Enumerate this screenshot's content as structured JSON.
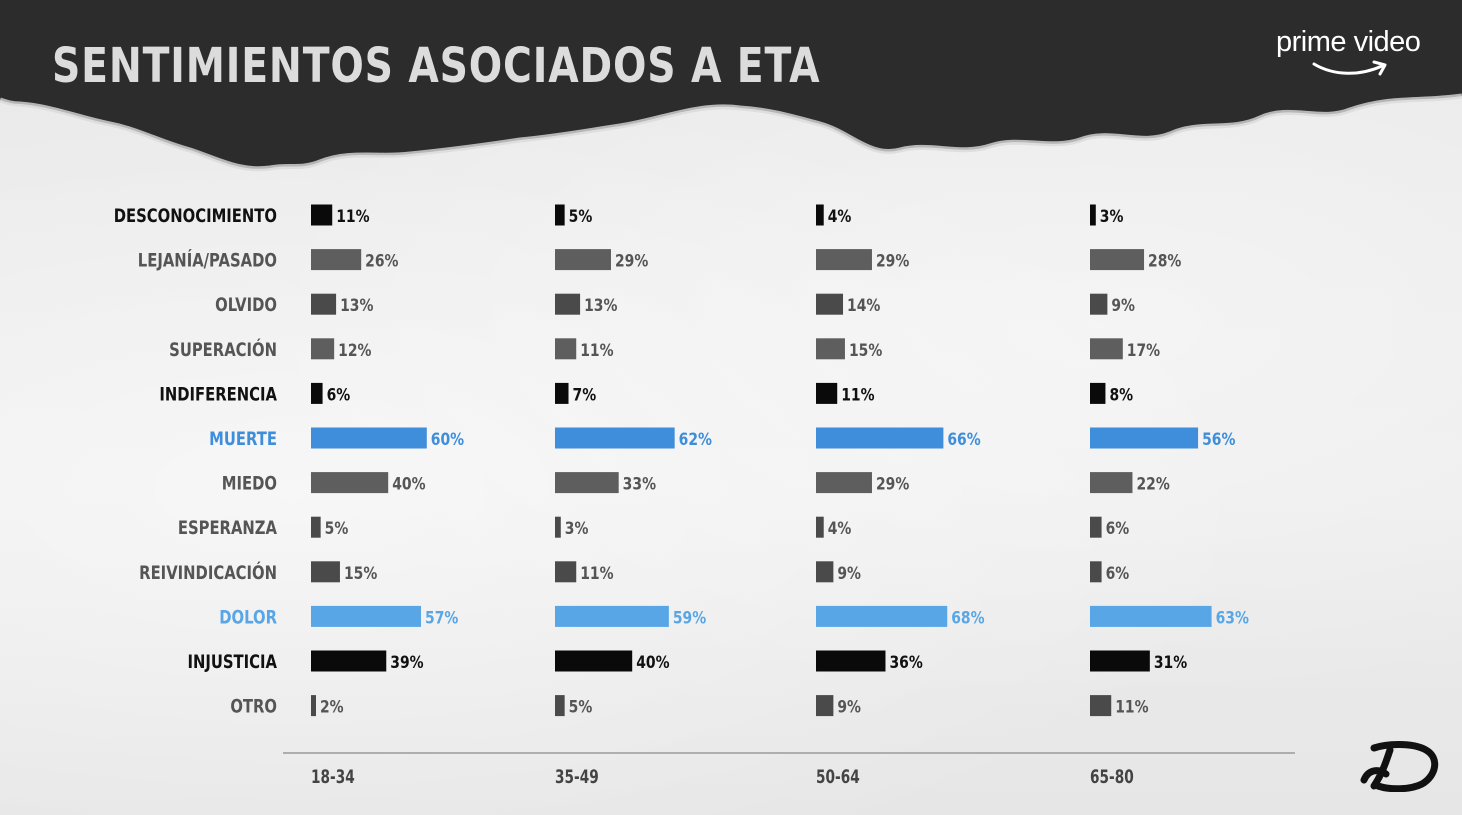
{
  "header": {
    "title": "SENTIMIENTOS ASOCIADOS A ETA",
    "brand": "prime video"
  },
  "colors": {
    "black": "#0a0a0a",
    "gray": "#5e5e5e",
    "dark_gray": "#4a4a4a",
    "blue": "#3f8edb",
    "light_blue": "#58a6e6",
    "label_black": "#111111",
    "label_gray": "#555555"
  },
  "chart_data": {
    "type": "bar",
    "orientation": "horizontal",
    "title": "SENTIMIENTOS ASOCIADOS A ETA",
    "categories": [
      "DESCONOCIMIENTO",
      "LEJANÍA/PASADO",
      "OLVIDO",
      "SUPERACIÓN",
      "INDIFERENCIA",
      "MUERTE",
      "MIEDO",
      "ESPERANZA",
      "REIVINDICACIÓN",
      "DOLOR",
      "INJUSTICIA",
      "OTRO"
    ],
    "category_colors": [
      "black",
      "gray",
      "dark_gray",
      "gray",
      "black",
      "blue",
      "gray",
      "dark_gray",
      "dark_gray",
      "light_blue",
      "black",
      "dark_gray"
    ],
    "label_colors": [
      "label_black",
      "label_gray",
      "label_gray",
      "label_gray",
      "label_black",
      "blue",
      "label_gray",
      "label_gray",
      "label_gray",
      "light_blue",
      "label_black",
      "label_gray"
    ],
    "series": [
      {
        "name": "18-34",
        "values": [
          11,
          26,
          13,
          12,
          6,
          60,
          40,
          5,
          15,
          57,
          39,
          2
        ]
      },
      {
        "name": "35-49",
        "values": [
          5,
          29,
          13,
          11,
          7,
          62,
          33,
          3,
          11,
          59,
          40,
          5
        ]
      },
      {
        "name": "50-64",
        "values": [
          4,
          29,
          14,
          15,
          11,
          66,
          29,
          4,
          9,
          68,
          36,
          9
        ]
      },
      {
        "name": "65-80",
        "values": [
          3,
          28,
          9,
          17,
          8,
          56,
          22,
          6,
          6,
          63,
          31,
          11
        ]
      }
    ],
    "value_suffix": "%",
    "xlim": [
      0,
      100
    ]
  }
}
